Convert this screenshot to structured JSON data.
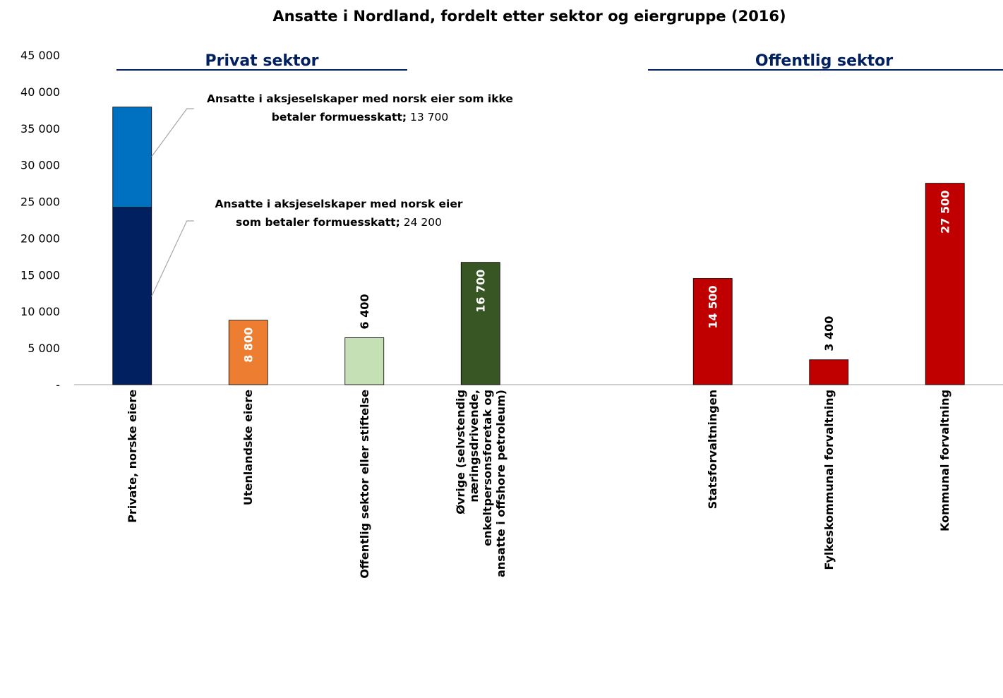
{
  "chart_data": {
    "type": "bar",
    "title": "Ansatte i Nordland, fordelt etter sektor og eiergruppe (2016)",
    "groups": [
      {
        "label": "Privat sektor"
      },
      {
        "label": "Offentlig sektor"
      }
    ],
    "categories": [
      "Private, norske eiere",
      "Utenlandske eiere",
      "Offentlig sektor eller stiftelse",
      "Øvrige (selvstendig næringsdrivende, enkeltpersonsforetak og ansatte i offshore petroleum)",
      null,
      "Statsforvaltningen",
      "Fylkeskommunal forvaltning",
      "Kommunal forvaltning"
    ],
    "series": [
      {
        "name": "Ansatte i aksjeselskaper med norsk eier som betaler formuesskatt;",
        "values": [
          24200,
          8800,
          6400,
          16700,
          null,
          14500,
          3400,
          27500
        ],
        "value_labels": [
          "24 200",
          "8 800",
          "6 400",
          "16 700",
          null,
          "14 500",
          "3 400",
          "27 500"
        ],
        "colors": [
          "#002060",
          "#ed7d31",
          "#c5e0b4",
          "#375623",
          null,
          "#c00000",
          "#c00000",
          "#c00000"
        ]
      },
      {
        "name": "Ansatte i aksjeselskaper med norsk eier som ikke betaler formuesskatt;",
        "values": [
          13700,
          null,
          null,
          null,
          null,
          null,
          null,
          null
        ],
        "value_labels": [
          "13 700",
          null,
          null,
          null,
          null,
          null,
          null,
          null
        ],
        "colors": [
          "#0070c0",
          null,
          null,
          null,
          null,
          null,
          null,
          null
        ]
      }
    ],
    "ylim": [
      0,
      45000
    ],
    "yticks": [
      {
        "value": 0,
        "label": "-"
      },
      {
        "value": 5000,
        "label": "5 000"
      },
      {
        "value": 10000,
        "label": "10 000"
      },
      {
        "value": 15000,
        "label": "15 000"
      },
      {
        "value": 20000,
        "label": "20 000"
      },
      {
        "value": 25000,
        "label": "25 000"
      },
      {
        "value": 30000,
        "label": "30 000"
      },
      {
        "value": 35000,
        "label": "35 000"
      },
      {
        "value": 40000,
        "label": "40 000"
      },
      {
        "value": 45000,
        "label": "45 000"
      }
    ],
    "grid": false
  }
}
